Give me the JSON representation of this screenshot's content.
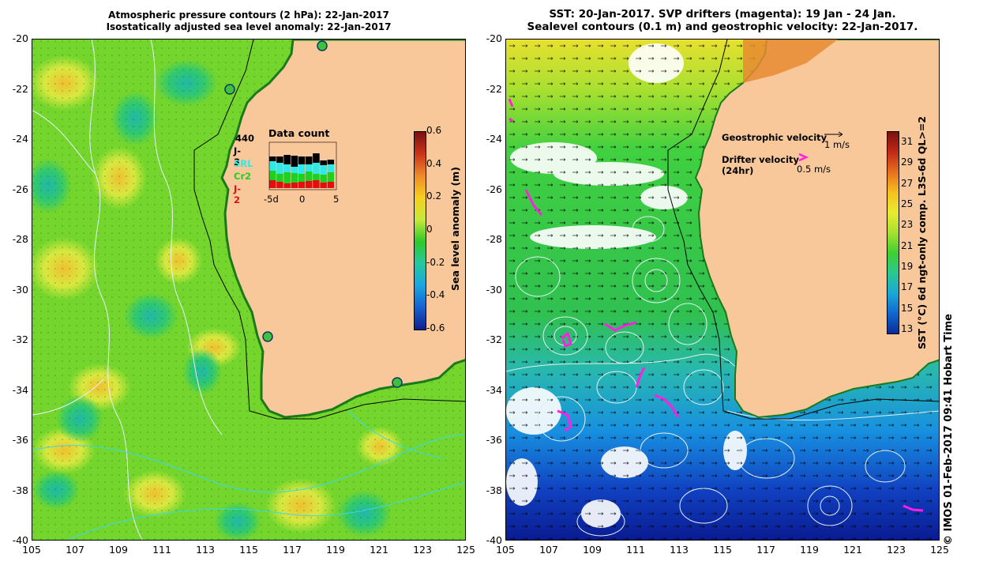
{
  "left": {
    "title_line1": "Atmospheric pressure contours (2 hPa): 22-Jan-2017",
    "title_line2": "Isostatically adjusted sea level anomaly: 22-Jan-2017",
    "colorbar": {
      "label": "Sea level anomaly (m)",
      "ticks": [
        "0.6",
        "0.4",
        "0.2",
        "0",
        "-0.2",
        "-0.4",
        "-0.6"
      ],
      "colors": [
        "#7a1010",
        "#c8341a",
        "#f08a2a",
        "#f5d020",
        "#c8e83a",
        "#2ec82a",
        "#26c8a0",
        "#18a6e0",
        "#1660d0",
        "#101e8c"
      ]
    },
    "data_count": {
      "title": "Data count",
      "total": "440",
      "missions": [
        {
          "name": "J-3",
          "color": "#000000"
        },
        {
          "name": "SRL",
          "color": "#30e8e8"
        },
        {
          "name": "Cr2",
          "color": "#20d020"
        },
        {
          "name": "J-2",
          "color": "#e01010"
        }
      ],
      "axis_labels": [
        "-5d",
        "0",
        "5"
      ]
    }
  },
  "right": {
    "title_line1": "SST: 20-Jan-2017. SVP drifters (magenta): 19 Jan - 24 Jan.",
    "title_line2": "Sealevel contours (0.1 m) and geostrophic velocity: 22-Jan-2017.",
    "legend": {
      "geo_label": "Geostrophic velocity",
      "geo_scale": "1 m/s",
      "drifter_label": "Drifter velocity",
      "drifter_sub": "(24hr)",
      "drifter_scale": "0.5 m/s"
    },
    "colorbar": {
      "label": "SST (°C) 6d ngt-only comp. L3S-6d QL>=2",
      "ticks": [
        "31",
        "29",
        "27",
        "25",
        "23",
        "21",
        "19",
        "17",
        "15",
        "13"
      ],
      "colors": [
        "#7a1010",
        "#c02a18",
        "#e8701e",
        "#f5c020",
        "#e8ec30",
        "#a8e030",
        "#40d030",
        "#28c890",
        "#1aa8d8",
        "#1068d0",
        "#0c2a9c"
      ]
    }
  },
  "y_ticks": [
    "-20",
    "-22",
    "-24",
    "-26",
    "-28",
    "-30",
    "-32",
    "-34",
    "-36",
    "-38",
    "-40"
  ],
  "x_ticks": [
    "105",
    "107",
    "109",
    "111",
    "113",
    "115",
    "117",
    "119",
    "121",
    "123",
    "125"
  ],
  "credit": "© IMOS 01-Feb-2017 09:41 Hobart Time",
  "colors": {
    "land": "#f8c89a",
    "ocean_left": "#70d82a",
    "ocean_right": "#38c840"
  }
}
